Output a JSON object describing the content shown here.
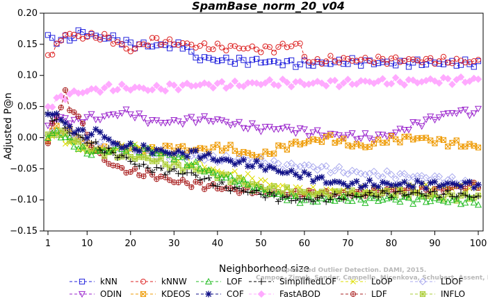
{
  "chart_data": {
    "type": "line",
    "title": "SpamBase_norm_20_v04",
    "xlabel": "Neighborhood size",
    "ylabel": "Adjusted P@n",
    "xlim": [
      1,
      100
    ],
    "ylim": [
      -0.15,
      0.2
    ],
    "xticks": [
      1,
      10,
      20,
      30,
      40,
      50,
      60,
      70,
      80,
      90,
      100
    ],
    "yticks": [
      -0.15,
      -0.1,
      -0.05,
      0.0,
      0.05,
      0.1,
      0.15,
      0.2
    ],
    "ytick_labels": [
      "−0.15",
      "−0.10",
      "−0.05",
      "0.00",
      "0.05",
      "0.10",
      "0.15",
      "0.20"
    ],
    "grid": false,
    "legend_position": "bottom",
    "watermark": [
      "Unsupervised Outlier Detection. DAMI, 2015.",
      "Campos, Zimek, Sander, Campello, Micenkova, Schubert, Assent, Houle"
    ],
    "series": [
      {
        "name": "kNN",
        "color": "#2222dd",
        "marker": "square",
        "anchors": [
          [
            1,
            0.163
          ],
          [
            3,
            0.155
          ],
          [
            6,
            0.16
          ],
          [
            9,
            0.17
          ],
          [
            12,
            0.162
          ],
          [
            16,
            0.16
          ],
          [
            20,
            0.15
          ],
          [
            25,
            0.148
          ],
          [
            30,
            0.148
          ],
          [
            33,
            0.148
          ],
          [
            34,
            0.132
          ],
          [
            36,
            0.128
          ],
          [
            40,
            0.125
          ],
          [
            45,
            0.123
          ],
          [
            50,
            0.123
          ],
          [
            53,
            0.121
          ],
          [
            57,
            0.12
          ],
          [
            60,
            0.118
          ],
          [
            65,
            0.12
          ],
          [
            70,
            0.122
          ],
          [
            80,
            0.12
          ],
          [
            90,
            0.12
          ],
          [
            100,
            0.119
          ]
        ]
      },
      {
        "name": "kNNW",
        "color": "#dd2222",
        "marker": "circle",
        "anchors": [
          [
            1,
            0.138
          ],
          [
            2,
            0.135
          ],
          [
            5,
            0.168
          ],
          [
            8,
            0.162
          ],
          [
            12,
            0.163
          ],
          [
            15,
            0.16
          ],
          [
            18,
            0.148
          ],
          [
            20,
            0.14
          ],
          [
            23,
            0.15
          ],
          [
            25,
            0.157
          ],
          [
            30,
            0.152
          ],
          [
            33,
            0.15
          ],
          [
            36,
            0.147
          ],
          [
            40,
            0.145
          ],
          [
            45,
            0.145
          ],
          [
            50,
            0.142
          ],
          [
            53,
            0.143
          ],
          [
            56,
            0.148
          ],
          [
            59,
            0.15
          ],
          [
            60,
            0.13
          ],
          [
            62,
            0.12
          ],
          [
            65,
            0.125
          ],
          [
            70,
            0.125
          ],
          [
            80,
            0.125
          ],
          [
            90,
            0.124
          ],
          [
            100,
            0.122
          ]
        ]
      },
      {
        "name": "LOF",
        "color": "#22bb22",
        "marker": "triangle-up",
        "anchors": [
          [
            1,
            0.0
          ],
          [
            3,
            0.01
          ],
          [
            6,
            -0.005
          ],
          [
            10,
            -0.025
          ],
          [
            15,
            -0.02
          ],
          [
            20,
            -0.015
          ],
          [
            25,
            -0.022
          ],
          [
            30,
            -0.03
          ],
          [
            35,
            -0.045
          ],
          [
            40,
            -0.06
          ],
          [
            45,
            -0.07
          ],
          [
            50,
            -0.085
          ],
          [
            55,
            -0.095
          ],
          [
            60,
            -0.1
          ],
          [
            65,
            -0.1
          ],
          [
            70,
            -0.098
          ],
          [
            75,
            -0.1
          ],
          [
            80,
            -0.098
          ],
          [
            85,
            -0.1
          ],
          [
            90,
            -0.1
          ],
          [
            95,
            -0.102
          ],
          [
            100,
            -0.103
          ]
        ]
      },
      {
        "name": "SimplifiedLOF",
        "color": "#000000",
        "marker": "plus",
        "anchors": [
          [
            1,
            0.035
          ],
          [
            3,
            0.03
          ],
          [
            6,
            0.01
          ],
          [
            10,
            -0.005
          ],
          [
            14,
            -0.02
          ],
          [
            18,
            -0.03
          ],
          [
            22,
            -0.045
          ],
          [
            26,
            -0.052
          ],
          [
            30,
            -0.055
          ],
          [
            34,
            -0.058
          ],
          [
            38,
            -0.07
          ],
          [
            42,
            -0.08
          ],
          [
            46,
            -0.085
          ],
          [
            50,
            -0.09
          ],
          [
            55,
            -0.098
          ],
          [
            60,
            -0.1
          ],
          [
            65,
            -0.098
          ],
          [
            70,
            -0.095
          ],
          [
            75,
            -0.092
          ],
          [
            80,
            -0.09
          ],
          [
            85,
            -0.09
          ],
          [
            90,
            -0.09
          ],
          [
            95,
            -0.092
          ],
          [
            100,
            -0.095
          ]
        ]
      },
      {
        "name": "LoOP",
        "color": "#dddd00",
        "marker": "x",
        "anchors": [
          [
            1,
            0.0
          ],
          [
            3,
            0.005
          ],
          [
            6,
            -0.01
          ],
          [
            10,
            -0.02
          ],
          [
            15,
            -0.02
          ],
          [
            20,
            -0.015
          ],
          [
            25,
            -0.02
          ],
          [
            30,
            -0.03
          ],
          [
            35,
            -0.04
          ],
          [
            40,
            -0.055
          ],
          [
            45,
            -0.06
          ],
          [
            50,
            -0.07
          ],
          [
            55,
            -0.08
          ],
          [
            60,
            -0.085
          ],
          [
            65,
            -0.085
          ],
          [
            70,
            -0.085
          ],
          [
            75,
            -0.085
          ],
          [
            80,
            -0.082
          ],
          [
            85,
            -0.08
          ],
          [
            90,
            -0.08
          ],
          [
            95,
            -0.08
          ],
          [
            100,
            -0.08
          ]
        ]
      },
      {
        "name": "LDOF",
        "color": "#aaaaee",
        "marker": "diamond",
        "anchors": [
          [
            1,
            0.0
          ],
          [
            3,
            0.01
          ],
          [
            6,
            0.005
          ],
          [
            10,
            -0.01
          ],
          [
            15,
            -0.015
          ],
          [
            20,
            -0.02
          ],
          [
            25,
            -0.025
          ],
          [
            30,
            -0.03
          ],
          [
            35,
            -0.03
          ],
          [
            40,
            -0.035
          ],
          [
            45,
            -0.035
          ],
          [
            50,
            -0.038
          ],
          [
            55,
            -0.045
          ],
          [
            60,
            -0.045
          ],
          [
            65,
            -0.05
          ],
          [
            70,
            -0.055
          ],
          [
            75,
            -0.058
          ],
          [
            80,
            -0.06
          ],
          [
            85,
            -0.062
          ],
          [
            90,
            -0.065
          ],
          [
            95,
            -0.07
          ],
          [
            100,
            -0.075
          ]
        ]
      },
      {
        "name": "ODIN",
        "color": "#9922cc",
        "marker": "triangle-down",
        "anchors": [
          [
            1,
            0.02
          ],
          [
            3,
            0.03
          ],
          [
            5,
            0.03
          ],
          [
            8,
            0.025
          ],
          [
            10,
            0.035
          ],
          [
            12,
            0.03
          ],
          [
            15,
            0.035
          ],
          [
            18,
            0.04
          ],
          [
            20,
            0.04
          ],
          [
            23,
            0.03
          ],
          [
            26,
            0.025
          ],
          [
            30,
            0.025
          ],
          [
            35,
            0.03
          ],
          [
            40,
            0.028
          ],
          [
            45,
            0.02
          ],
          [
            50,
            0.015
          ],
          [
            55,
            0.015
          ],
          [
            60,
            0.01
          ],
          [
            65,
            0.005
          ],
          [
            70,
            0.003
          ],
          [
            75,
            0.0
          ],
          [
            80,
            0.005
          ],
          [
            85,
            0.02
          ],
          [
            90,
            0.032
          ],
          [
            95,
            0.042
          ],
          [
            100,
            0.04
          ]
        ]
      },
      {
        "name": "KDEOS",
        "color": "#ee9900",
        "marker": "square-x",
        "anchors": [
          [
            1,
            0.0
          ],
          [
            3,
            0.015
          ],
          [
            6,
            0.01
          ],
          [
            10,
            -0.01
          ],
          [
            14,
            -0.02
          ],
          [
            18,
            -0.015
          ],
          [
            22,
            -0.02
          ],
          [
            26,
            -0.02
          ],
          [
            30,
            -0.015
          ],
          [
            34,
            -0.02
          ],
          [
            38,
            -0.018
          ],
          [
            42,
            -0.015
          ],
          [
            46,
            -0.025
          ],
          [
            50,
            -0.03
          ],
          [
            55,
            -0.015
          ],
          [
            58,
            -0.01
          ],
          [
            62,
            -0.005
          ],
          [
            66,
            0.0
          ],
          [
            70,
            -0.01
          ],
          [
            74,
            -0.015
          ],
          [
            78,
            -0.005
          ],
          [
            82,
            -0.002
          ],
          [
            86,
            0.0
          ],
          [
            90,
            -0.005
          ],
          [
            95,
            -0.01
          ],
          [
            100,
            -0.015
          ]
        ]
      },
      {
        "name": "COF",
        "color": "#111188",
        "marker": "star",
        "anchors": [
          [
            1,
            0.035
          ],
          [
            3,
            0.04
          ],
          [
            5,
            0.02
          ],
          [
            8,
            0.01
          ],
          [
            10,
            0.005
          ],
          [
            13,
            0.01
          ],
          [
            16,
            -0.01
          ],
          [
            20,
            -0.015
          ],
          [
            25,
            -0.02
          ],
          [
            30,
            -0.025
          ],
          [
            35,
            -0.025
          ],
          [
            40,
            -0.035
          ],
          [
            45,
            -0.04
          ],
          [
            50,
            -0.045
          ],
          [
            55,
            -0.055
          ],
          [
            60,
            -0.06
          ],
          [
            65,
            -0.07
          ],
          [
            70,
            -0.075
          ],
          [
            75,
            -0.075
          ],
          [
            80,
            -0.075
          ],
          [
            85,
            -0.075
          ],
          [
            90,
            -0.075
          ],
          [
            95,
            -0.075
          ],
          [
            100,
            -0.075
          ]
        ]
      },
      {
        "name": "FastABOD",
        "color": "#ffaaff",
        "marker": "diamond-filled",
        "anchors": [
          [
            1,
            0.05
          ],
          [
            3,
            0.06
          ],
          [
            6,
            0.07
          ],
          [
            10,
            0.075
          ],
          [
            15,
            0.08
          ],
          [
            20,
            0.08
          ],
          [
            25,
            0.078
          ],
          [
            30,
            0.082
          ],
          [
            35,
            0.085
          ],
          [
            40,
            0.085
          ],
          [
            45,
            0.085
          ],
          [
            50,
            0.088
          ],
          [
            55,
            0.088
          ],
          [
            60,
            0.087
          ],
          [
            65,
            0.088
          ],
          [
            70,
            0.088
          ],
          [
            75,
            0.09
          ],
          [
            80,
            0.09
          ],
          [
            85,
            0.09
          ],
          [
            90,
            0.092
          ],
          [
            95,
            0.092
          ],
          [
            100,
            0.093
          ]
        ]
      },
      {
        "name": "LDF",
        "color": "#aa2222",
        "marker": "circle-plus",
        "anchors": [
          [
            1,
            -0.01
          ],
          [
            2,
            0.02
          ],
          [
            4,
            0.05
          ],
          [
            5,
            0.078
          ],
          [
            6,
            0.04
          ],
          [
            8,
            0.04
          ],
          [
            10,
            0.0
          ],
          [
            13,
            -0.03
          ],
          [
            16,
            -0.045
          ],
          [
            20,
            -0.055
          ],
          [
            25,
            -0.06
          ],
          [
            30,
            -0.07
          ],
          [
            35,
            -0.075
          ],
          [
            40,
            -0.08
          ],
          [
            45,
            -0.085
          ],
          [
            50,
            -0.085
          ],
          [
            55,
            -0.09
          ],
          [
            60,
            -0.09
          ],
          [
            65,
            -0.09
          ],
          [
            70,
            -0.09
          ],
          [
            75,
            -0.088
          ],
          [
            80,
            -0.085
          ],
          [
            85,
            -0.085
          ],
          [
            90,
            -0.085
          ],
          [
            95,
            -0.08
          ],
          [
            100,
            -0.075
          ]
        ]
      },
      {
        "name": "INFLO",
        "color": "#aacc33",
        "marker": "square-star",
        "anchors": [
          [
            1,
            0.0
          ],
          [
            3,
            0.01
          ],
          [
            6,
            0.0
          ],
          [
            10,
            -0.02
          ],
          [
            15,
            -0.025
          ],
          [
            20,
            -0.03
          ],
          [
            25,
            -0.035
          ],
          [
            30,
            -0.045
          ],
          [
            35,
            -0.05
          ],
          [
            40,
            -0.06
          ],
          [
            45,
            -0.07
          ],
          [
            50,
            -0.08
          ],
          [
            55,
            -0.085
          ],
          [
            60,
            -0.09
          ],
          [
            65,
            -0.09
          ],
          [
            70,
            -0.09
          ],
          [
            75,
            -0.09
          ],
          [
            80,
            -0.09
          ],
          [
            85,
            -0.09
          ],
          [
            90,
            -0.095
          ],
          [
            95,
            -0.095
          ],
          [
            100,
            -0.095
          ]
        ]
      }
    ]
  }
}
